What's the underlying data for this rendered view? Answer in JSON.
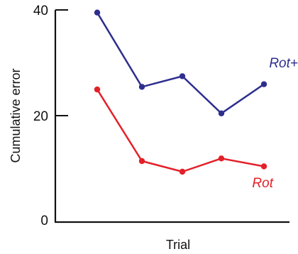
{
  "chart_data": {
    "type": "line",
    "xlabel": "Trial",
    "ylabel": "Cumulative error",
    "ylim": [
      0,
      40
    ],
    "yticks": [
      0,
      20,
      40
    ],
    "x": [
      1,
      2,
      3,
      4,
      5
    ],
    "series": [
      {
        "name": "Rot+",
        "values": [
          39.5,
          25.5,
          27.5,
          20.5,
          26
        ],
        "color": "#2e2e8f"
      },
      {
        "name": "Rot",
        "values": [
          25,
          11.5,
          9.5,
          12,
          10.5
        ],
        "color": "#e32028"
      }
    ],
    "grid": false,
    "legend": "inline labels"
  }
}
